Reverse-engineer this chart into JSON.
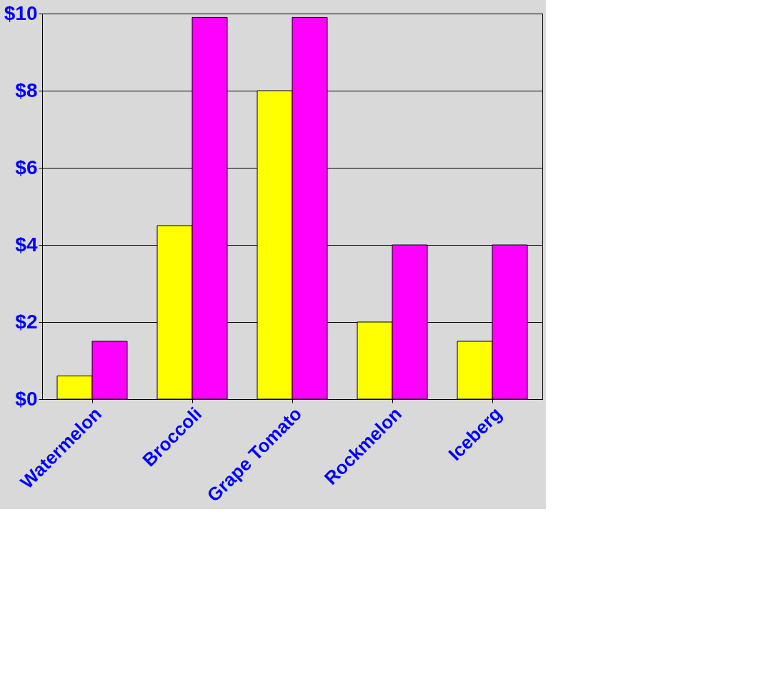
{
  "chart_data": {
    "type": "bar",
    "categories": [
      "Watermelon",
      "Broccoli",
      "Grape Tomato",
      "Rockmelon",
      "Iceberg"
    ],
    "series": [
      {
        "color": "#ffff00",
        "values": [
          0.6,
          4.5,
          8,
          2,
          1.5
        ]
      },
      {
        "color": "#ff00ff",
        "values": [
          1.5,
          9.9,
          9.9,
          4,
          4
        ]
      }
    ],
    "ylim": [
      0,
      10
    ],
    "yticks": [
      {
        "value": 0,
        "label": "$0"
      },
      {
        "value": 2,
        "label": "$2"
      },
      {
        "value": 4,
        "label": "$4"
      },
      {
        "value": 6,
        "label": "$6"
      },
      {
        "value": 8,
        "label": "$8"
      },
      {
        "value": 10,
        "label": "$10"
      }
    ],
    "grid": "y",
    "legend": false
  }
}
